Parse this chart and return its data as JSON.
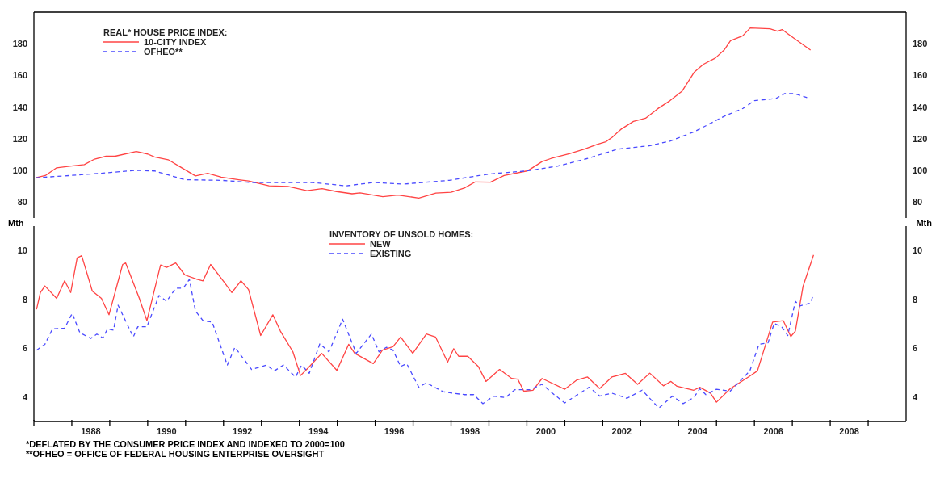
{
  "chart_data": [
    {
      "type": "line",
      "legend_title": "REAL* HOUSE PRICE INDEX:",
      "legend": "top left",
      "tick_labels": "y",
      "xlim": [
        1987,
        2010
      ],
      "ylim": [
        70,
        200
      ],
      "yticks": [
        80,
        100,
        120,
        140,
        160,
        180
      ],
      "y2lim": [
        70,
        200
      ],
      "y2ticks": [
        80,
        100,
        120,
        140,
        160,
        180
      ],
      "series": [
        {
          "name": "10-CITY INDEX",
          "color": "#ff4444",
          "line_style": "solid",
          "x": [
            1987.05,
            1987.3,
            1987.6,
            1987.94,
            1988.33,
            1988.6,
            1988.9,
            1989.14,
            1989.7,
            1990.0,
            1990.18,
            1990.54,
            1990.9,
            1991.26,
            1991.58,
            1991.94,
            1992.4,
            1992.66,
            1993.2,
            1993.7,
            1994.2,
            1994.6,
            1994.98,
            1995.39,
            1995.6,
            1996.2,
            1996.6,
            1997.15,
            1997.6,
            1998.0,
            1998.35,
            1998.64,
            1999.04,
            1999.4,
            2000.0,
            2000.12,
            2000.4,
            2000.64,
            2001.12,
            2001.52,
            2001.85,
            2002.08,
            2002.25,
            2002.48,
            2002.81,
            2003.13,
            2003.45,
            2003.77,
            2004.09,
            2004.41,
            2004.65,
            2004.97,
            2005.2,
            2005.37,
            2005.69,
            2005.89,
            2006.41,
            2006.61,
            2006.73,
            2006.9,
            2007.48
          ],
          "values": [
            95.4,
            96.8,
            101.7,
            102.7,
            103.7,
            107.2,
            109,
            109,
            112,
            110.4,
            108.6,
            106.8,
            101.7,
            96.6,
            98.2,
            95.8,
            94.2,
            93.4,
            90.3,
            89.9,
            87.3,
            88.5,
            86.7,
            85.3,
            85.9,
            83.4,
            84.5,
            82.6,
            85.7,
            86.3,
            88.9,
            92.8,
            92.6,
            96.8,
            99.7,
            101.3,
            105.6,
            107.6,
            110.6,
            113.5,
            116.5,
            118.1,
            121,
            126,
            131,
            133,
            139,
            144,
            150,
            162,
            167,
            171,
            176,
            182,
            185,
            190,
            189.5,
            188,
            189,
            186,
            176
          ]
        },
        {
          "name": "OFHEO**",
          "color": "#4a4aff",
          "line_style": "dashed",
          "x": [
            1987.05,
            1987.94,
            1988.74,
            1989.7,
            1990.18,
            1990.98,
            1991.94,
            1992.74,
            1994.35,
            1995.23,
            1995.95,
            1996.75,
            1997.95,
            1998.9,
            1999.2,
            2000.0,
            2000.8,
            2001.6,
            2002.4,
            2003.2,
            2003.77,
            2004.41,
            2005.2,
            2005.7,
            2006.0,
            2006.57,
            2006.8,
            2007.05,
            2007.4
          ],
          "values": [
            95.4,
            96.8,
            98.2,
            100.1,
            99.7,
            94.2,
            93.8,
            92.4,
            92.4,
            90.3,
            92.4,
            91.4,
            93.8,
            97.4,
            98.2,
            99.7,
            102.7,
            107.6,
            113.5,
            115.5,
            118.5,
            124.4,
            134.2,
            139.2,
            144.1,
            145.5,
            148.6,
            148.6,
            146
          ]
        }
      ]
    },
    {
      "type": "line",
      "legend_title": "INVENTORY OF UNSOLD HOMES:",
      "legend": "top",
      "ylabel": "Mth",
      "y2label": "Mth",
      "xlim": [
        1987,
        2010
      ],
      "xticks": [
        {
          "value": 1987,
          "label": null
        },
        {
          "value": 1988,
          "label": null
        },
        {
          "value": 1988.5,
          "label": "1988"
        },
        {
          "value": 1989,
          "label": null
        },
        {
          "value": 1990,
          "label": null
        },
        {
          "value": 1990.5,
          "label": "1990"
        },
        {
          "value": 1991,
          "label": null
        },
        {
          "value": 1992,
          "label": null
        },
        {
          "value": 1992.5,
          "label": "1992"
        },
        {
          "value": 1993,
          "label": null
        },
        {
          "value": 1994,
          "label": null
        },
        {
          "value": 1994.5,
          "label": "1994"
        },
        {
          "value": 1995,
          "label": null
        },
        {
          "value": 1996,
          "label": null
        },
        {
          "value": 1996.5,
          "label": "1996"
        },
        {
          "value": 1997,
          "label": null
        },
        {
          "value": 1998,
          "label": null
        },
        {
          "value": 1998.5,
          "label": "1998"
        },
        {
          "value": 1999,
          "label": null
        },
        {
          "value": 2000,
          "label": null
        },
        {
          "value": 2000.5,
          "label": "2000"
        },
        {
          "value": 2001,
          "label": null
        },
        {
          "value": 2002,
          "label": null
        },
        {
          "value": 2002.5,
          "label": "2002"
        },
        {
          "value": 2003,
          "label": null
        },
        {
          "value": 2004,
          "label": null
        },
        {
          "value": 2004.5,
          "label": "2004"
        },
        {
          "value": 2005,
          "label": null
        },
        {
          "value": 2006,
          "label": null
        },
        {
          "value": 2006.5,
          "label": "2006"
        },
        {
          "value": 2007,
          "label": null
        },
        {
          "value": 2008,
          "label": null
        },
        {
          "value": 2008.5,
          "label": "2008"
        },
        {
          "value": 2009,
          "label": null
        }
      ],
      "ylim": [
        3,
        11
      ],
      "yticks": [
        4,
        6,
        8,
        10
      ],
      "y2lim": [
        3,
        11
      ],
      "y2ticks": [
        4,
        6,
        8,
        10
      ],
      "annotations": [
        "*DEFLATED BY THE CONSUMER PRICE INDEX AND INDEXED TO 2000=100",
        "**OFHEO = OFFICE OF FEDERAL HOUSING ENTERPRISE OVERSIGHT"
      ],
      "series": [
        {
          "name": "NEW",
          "color": "#ff4444",
          "line_style": "solid",
          "x": [
            1987.07,
            1987.17,
            1987.29,
            1987.6,
            1987.81,
            1987.97,
            1988.14,
            1988.26,
            1988.54,
            1988.78,
            1988.98,
            1989.34,
            1989.42,
            1989.78,
            1989.98,
            1990.34,
            1990.5,
            1990.74,
            1990.98,
            1991.3,
            1991.46,
            1991.66,
            1992.02,
            1992.22,
            1992.46,
            1992.66,
            1992.98,
            1993.3,
            1993.5,
            1993.83,
            1994.03,
            1994.23,
            1994.59,
            1994.99,
            1995.3,
            1995.46,
            1995.95,
            1996.19,
            1996.47,
            1996.67,
            1996.99,
            1997.35,
            1997.59,
            1997.91,
            1998.07,
            1998.2,
            1998.44,
            1998.72,
            1998.92,
            1999.28,
            1999.6,
            1999.76,
            1999.92,
            2000.16,
            2000.4,
            2001.0,
            2001.32,
            2001.6,
            2001.92,
            2002.24,
            2002.6,
            2002.92,
            2003.24,
            2003.6,
            2003.8,
            2003.96,
            2004.4,
            2004.56,
            2004.84,
            2005.0,
            2005.36,
            2005.84,
            2006.08,
            2006.48,
            2006.76,
            2006.96,
            2007.08,
            2007.28,
            2007.56
          ],
          "values": [
            7.59,
            8.28,
            8.55,
            8.04,
            8.76,
            8.28,
            9.7,
            9.79,
            8.34,
            8.04,
            7.37,
            9.43,
            9.49,
            8.04,
            7.13,
            9.41,
            9.31,
            9.49,
            9.0,
            8.82,
            8.76,
            9.43,
            8.7,
            8.28,
            8.76,
            8.4,
            6.52,
            7.37,
            6.7,
            5.85,
            4.88,
            5.19,
            5.79,
            5.09,
            6.16,
            5.79,
            5.37,
            5.92,
            6.06,
            6.46,
            5.79,
            6.58,
            6.46,
            5.43,
            5.98,
            5.67,
            5.67,
            5.25,
            4.64,
            5.13,
            4.76,
            4.73,
            4.24,
            4.28,
            4.76,
            4.32,
            4.7,
            4.82,
            4.35,
            4.82,
            4.97,
            4.52,
            4.98,
            4.46,
            4.64,
            4.44,
            4.28,
            4.4,
            4.16,
            3.79,
            4.34,
            4.82,
            5.07,
            7.07,
            7.13,
            6.48,
            6.7,
            8.52,
            9.82
          ]
        },
        {
          "name": "EXISTING",
          "color": "#4a4aff",
          "line_style": "dashed",
          "x": [
            1987.07,
            1987.29,
            1987.49,
            1987.81,
            1988.01,
            1988.21,
            1988.5,
            1988.66,
            1988.82,
            1988.94,
            1989.1,
            1989.22,
            1989.62,
            1989.74,
            1989.98,
            1990.3,
            1990.5,
            1990.74,
            1990.94,
            1991.1,
            1991.26,
            1991.46,
            1991.7,
            1992.1,
            1992.3,
            1992.74,
            1993.14,
            1993.34,
            1993.58,
            1993.9,
            1994.06,
            1994.26,
            1994.54,
            1994.78,
            1995.14,
            1995.5,
            1995.9,
            1996.1,
            1996.3,
            1996.47,
            1996.67,
            1996.83,
            1997.15,
            1997.35,
            1997.79,
            1998.03,
            1998.35,
            1998.6,
            1998.84,
            1999.12,
            1999.44,
            1999.68,
            2000.08,
            2000.4,
            2000.72,
            2001.0,
            2001.64,
            2001.92,
            2002.24,
            2002.64,
            2003.04,
            2003.48,
            2003.84,
            2004.12,
            2004.4,
            2004.56,
            2004.72,
            2005.0,
            2005.36,
            2005.88,
            2006.12,
            2006.36,
            2006.52,
            2006.72,
            2006.88,
            2007.08,
            2007.2,
            2007.48,
            2007.56
          ],
          "values": [
            5.92,
            6.16,
            6.79,
            6.82,
            7.43,
            6.64,
            6.4,
            6.58,
            6.42,
            6.79,
            6.74,
            7.76,
            6.46,
            6.88,
            6.88,
            8.16,
            7.92,
            8.46,
            8.46,
            8.82,
            7.52,
            7.13,
            7.07,
            5.31,
            6.04,
            5.13,
            5.31,
            5.07,
            5.31,
            4.82,
            5.31,
            4.97,
            6.18,
            5.85,
            7.19,
            5.79,
            6.58,
            5.85,
            6.04,
            5.92,
            5.25,
            5.37,
            4.4,
            4.58,
            4.22,
            4.16,
            4.1,
            4.1,
            3.73,
            4.04,
            3.98,
            4.3,
            4.3,
            4.52,
            4.1,
            3.76,
            4.4,
            4.04,
            4.16,
            3.95,
            4.28,
            3.55,
            4.04,
            3.73,
            3.98,
            4.34,
            4.1,
            4.32,
            4.24,
            5.07,
            6.16,
            6.22,
            7.01,
            6.88,
            6.52,
            7.92,
            7.73,
            7.85,
            8.22
          ]
        }
      ]
    }
  ]
}
